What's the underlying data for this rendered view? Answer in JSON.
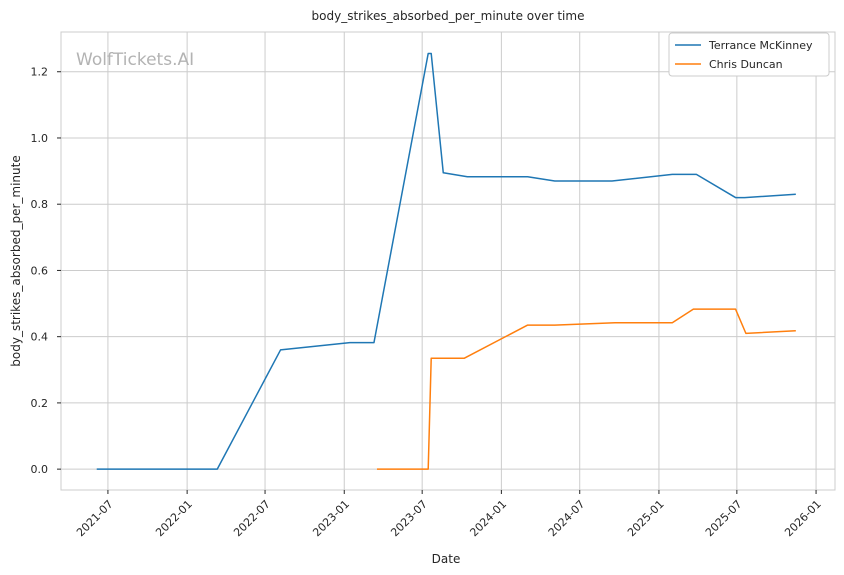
{
  "chart_data": {
    "type": "line",
    "title": "body_strikes_absorbed_per_minute over time",
    "xlabel": "Date",
    "ylabel": "body_strikes_absorbed_per_minute",
    "watermark": "WolfTickets.AI",
    "xlim": [
      "2021-03-14",
      "2026-02-14"
    ],
    "ylim": [
      -0.063,
      1.32
    ],
    "x_ticks": [
      "2021-07",
      "2022-01",
      "2022-07",
      "2023-01",
      "2023-07",
      "2024-01",
      "2024-07",
      "2025-01",
      "2025-07",
      "2026-01"
    ],
    "y_ticks": [
      0.0,
      0.2,
      0.4,
      0.6,
      0.8,
      1.0,
      1.2
    ],
    "y_tick_labels": [
      "0.0",
      "0.2",
      "0.4",
      "0.6",
      "0.8",
      "1.0",
      "1.2"
    ],
    "grid": true,
    "legend_position": "top-right",
    "series": [
      {
        "name": "Terrance McKinney",
        "color": "#1f77b4",
        "points": [
          [
            "2021-06-05",
            0.0
          ],
          [
            "2022-03-12",
            0.0
          ],
          [
            "2022-08-06",
            0.36
          ],
          [
            "2023-01-14",
            0.382
          ],
          [
            "2023-03-11",
            0.382
          ],
          [
            "2023-07-15",
            1.255
          ],
          [
            "2023-07-22",
            1.255
          ],
          [
            "2023-08-19",
            0.895
          ],
          [
            "2023-10-14",
            0.883
          ],
          [
            "2024-03-02",
            0.883
          ],
          [
            "2024-05-04",
            0.87
          ],
          [
            "2024-09-14",
            0.87
          ],
          [
            "2025-02-01",
            0.89
          ],
          [
            "2025-03-29",
            0.89
          ],
          [
            "2025-06-28",
            0.82
          ],
          [
            "2025-07-19",
            0.82
          ],
          [
            "2025-11-15",
            0.83
          ]
        ]
      },
      {
        "name": "Chris Duncan",
        "color": "#ff7f0e",
        "points": [
          [
            "2023-03-18",
            0.0
          ],
          [
            "2023-07-15",
            0.0
          ],
          [
            "2023-07-22",
            0.335
          ],
          [
            "2023-10-07",
            0.335
          ],
          [
            "2024-03-02",
            0.435
          ],
          [
            "2024-05-04",
            0.435
          ],
          [
            "2024-09-21",
            0.442
          ],
          [
            "2025-02-01",
            0.442
          ],
          [
            "2025-03-22",
            0.483
          ],
          [
            "2025-06-28",
            0.483
          ],
          [
            "2025-07-22",
            0.41
          ],
          [
            "2025-11-15",
            0.418
          ]
        ]
      }
    ]
  }
}
